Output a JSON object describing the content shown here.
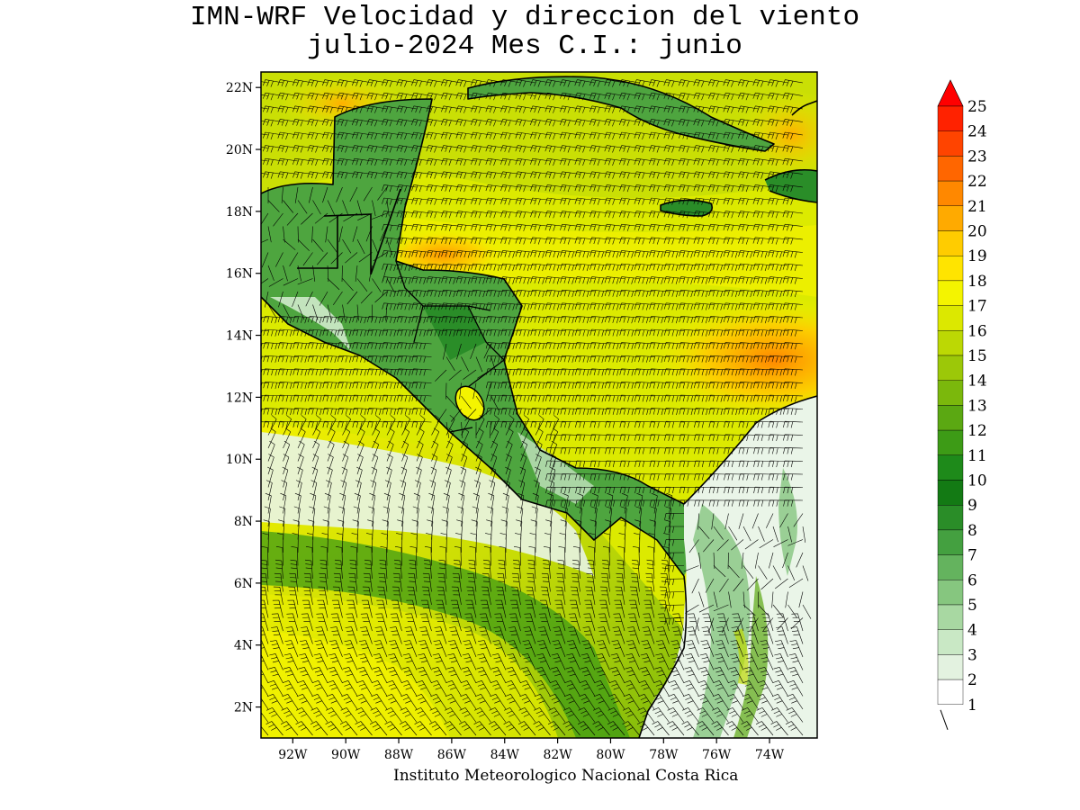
{
  "title": {
    "line1": "IMN-WRF Velocidad y direccion del viento",
    "line2": "julio-2024 Mes C.I.: junio"
  },
  "credit": "Instituto Meteorologico Nacional Costa Rica",
  "map": {
    "lon_range": [
      -93.2,
      -72.2
    ],
    "lat_range": [
      1.0,
      22.5
    ],
    "lon_ticks": [
      {
        "value": -92,
        "label": "92W"
      },
      {
        "value": -90,
        "label": "90W"
      },
      {
        "value": -88,
        "label": "88W"
      },
      {
        "value": -86,
        "label": "86W"
      },
      {
        "value": -84,
        "label": "84W"
      },
      {
        "value": -82,
        "label": "82W"
      },
      {
        "value": -80,
        "label": "80W"
      },
      {
        "value": -78,
        "label": "78W"
      },
      {
        "value": -76,
        "label": "76W"
      },
      {
        "value": -74,
        "label": "74W"
      }
    ],
    "lat_ticks": [
      {
        "value": 2,
        "label": "2N"
      },
      {
        "value": 4,
        "label": "4N"
      },
      {
        "value": 6,
        "label": "6N"
      },
      {
        "value": 8,
        "label": "8N"
      },
      {
        "value": 10,
        "label": "10N"
      },
      {
        "value": 12,
        "label": "12N"
      },
      {
        "value": 14,
        "label": "14N"
      },
      {
        "value": 16,
        "label": "16N"
      },
      {
        "value": 18,
        "label": "18N"
      },
      {
        "value": 20,
        "label": "20N"
      },
      {
        "value": 22,
        "label": "22N"
      }
    ]
  },
  "colorbar": {
    "labels": [
      "1",
      "2",
      "3",
      "4",
      "5",
      "6",
      "7",
      "8",
      "9",
      "10",
      "11",
      "12",
      "13",
      "14",
      "15",
      "16",
      "17",
      "18",
      "19",
      "20",
      "21",
      "22",
      "23",
      "24",
      "25"
    ],
    "colors": [
      "#ffffff",
      "#e3f2e0",
      "#c9e8c5",
      "#a8d8a2",
      "#86c67f",
      "#64b35e",
      "#44a040",
      "#2a8d28",
      "#137a14",
      "#1e8a1a",
      "#3d9b16",
      "#5ba812",
      "#7bb80c",
      "#9cc808",
      "#bcd804",
      "#dce800",
      "#f4f400",
      "#ffe400",
      "#ffcc00",
      "#ffaa00",
      "#ff8800",
      "#ff6600",
      "#ff4400",
      "#ff2200"
    ],
    "over_color": "#ff0000",
    "calm_barb": "calm"
  }
}
